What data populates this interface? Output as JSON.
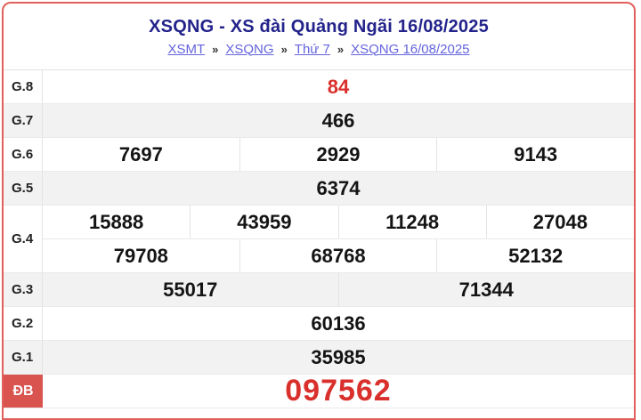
{
  "header": {
    "title": "XSQNG - XS đài Quảng Ngãi 16/08/2025"
  },
  "breadcrumb": {
    "separator": "»",
    "items": [
      "XSMT",
      "XSQNG",
      "Thứ 7",
      "XSQNG 16/08/2025"
    ]
  },
  "results": {
    "rows": [
      {
        "label": "G.8",
        "highlight": true,
        "lines": [
          [
            "84"
          ]
        ]
      },
      {
        "label": "G.7",
        "lines": [
          [
            "466"
          ]
        ]
      },
      {
        "label": "G.6",
        "lines": [
          [
            "7697",
            "2929",
            "9143"
          ]
        ]
      },
      {
        "label": "G.5",
        "lines": [
          [
            "6374"
          ]
        ]
      },
      {
        "label": "G.4",
        "lines": [
          [
            "15888",
            "43959",
            "11248",
            "27048"
          ],
          [
            "79708",
            "68768",
            "52132"
          ]
        ]
      },
      {
        "label": "G.3",
        "lines": [
          [
            "55017",
            "71344"
          ]
        ]
      },
      {
        "label": "G.2",
        "lines": [
          [
            "60136"
          ]
        ]
      },
      {
        "label": "G.1",
        "lines": [
          [
            "35985"
          ]
        ]
      },
      {
        "label": "ĐB",
        "special": true,
        "highlight": true,
        "lines": [
          [
            "097562"
          ]
        ]
      }
    ]
  },
  "colors": {
    "highlight_red": "#d9302c",
    "special_label_bg": "#d9534f",
    "card_border": "#e2605c",
    "title_navy": "#23238b",
    "link_blue": "#6464dd",
    "row_alt_bg": "#f2f2f2"
  }
}
